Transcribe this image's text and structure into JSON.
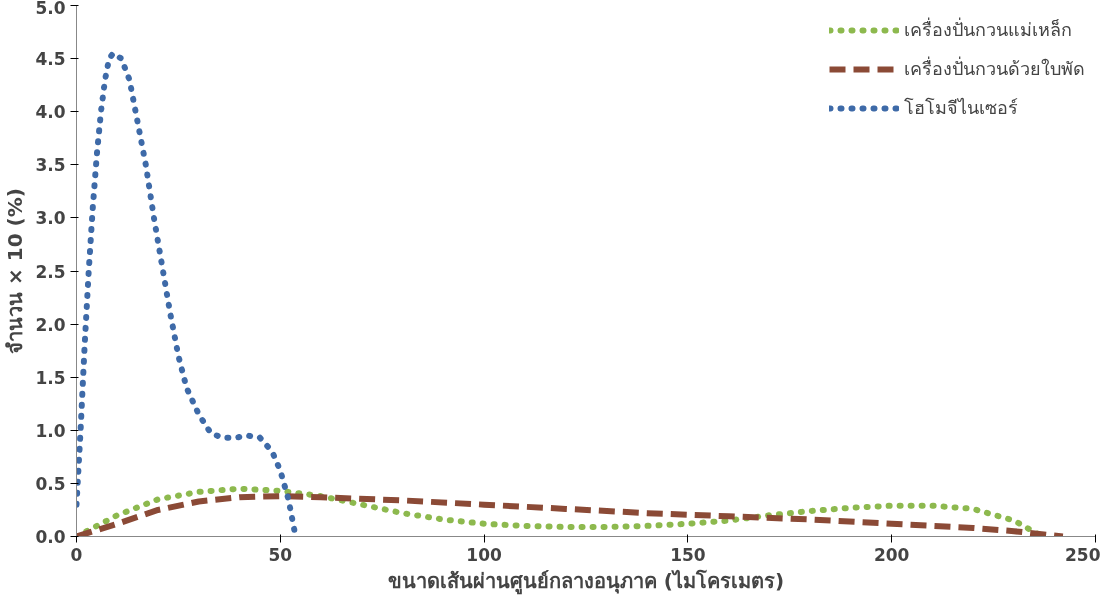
{
  "chart_data": {
    "type": "line",
    "xlabel": "ขนาดเส้นผ่านศูนย์กลางอนุภาค (ไมโครเมตร)",
    "ylabel": "จำนวน × 10 (%)",
    "xlim": [
      0,
      250
    ],
    "xticks": [
      0,
      50,
      100,
      150,
      200,
      250
    ],
    "ylim": [
      0,
      5
    ],
    "yticks": [
      {
        "value": 0,
        "label": "0.0"
      },
      {
        "value": 0.5,
        "label": "0.5"
      },
      {
        "value": 1,
        "label": "1.0"
      },
      {
        "value": 1.5,
        "label": "1.5"
      },
      {
        "value": 2,
        "label": "2.0"
      },
      {
        "value": 2.5,
        "label": "2.5"
      },
      {
        "value": 3,
        "label": "3.0"
      },
      {
        "value": 3.5,
        "label": "3.5"
      },
      {
        "value": 4,
        "label": "4.0"
      },
      {
        "value": 4.5,
        "label": "4.5"
      },
      {
        "value": 5,
        "label": "5.0"
      }
    ],
    "grid": false,
    "legend": "top right",
    "series": [
      {
        "name": "เครื่องปั่นกวนแม่เหล็ก",
        "color": "#8db94e",
        "line_style": "dotted",
        "x": [
          0,
          10,
          20,
          30,
          40,
          50,
          60,
          70,
          80,
          90,
          100,
          110,
          120,
          130,
          140,
          150,
          160,
          170,
          180,
          190,
          200,
          210,
          220,
          230,
          237
        ],
        "values": [
          0,
          0.2,
          0.35,
          0.42,
          0.45,
          0.43,
          0.38,
          0.3,
          0.22,
          0.16,
          0.12,
          0.1,
          0.09,
          0.09,
          0.1,
          0.12,
          0.15,
          0.2,
          0.24,
          0.27,
          0.29,
          0.29,
          0.26,
          0.15,
          0
        ]
      },
      {
        "name": "เครื่องปั่นกวนด้วยใบพัด",
        "color": "#8b4a36",
        "line_style": "dashed",
        "x": [
          0,
          10,
          20,
          30,
          40,
          50,
          60,
          80,
          100,
          120,
          140,
          160,
          180,
          200,
          220,
          230,
          242
        ],
        "values": [
          0,
          0.12,
          0.25,
          0.33,
          0.37,
          0.38,
          0.37,
          0.34,
          0.3,
          0.26,
          0.22,
          0.19,
          0.16,
          0.12,
          0.08,
          0.05,
          0
        ]
      },
      {
        "name": "โฮโมจีไนเซอร์",
        "color": "#3e6aa8",
        "line_style": "dotted",
        "x": [
          0,
          1,
          2,
          3,
          4,
          5,
          6,
          7,
          8,
          9,
          11,
          13,
          15,
          17,
          19,
          21,
          23,
          25,
          27,
          30,
          33,
          36,
          39,
          42,
          45,
          48,
          50,
          52,
          53.5
        ],
        "values": [
          0.3,
          1.0,
          1.8,
          2.5,
          3.1,
          3.6,
          4.0,
          4.3,
          4.5,
          4.55,
          4.5,
          4.3,
          3.9,
          3.5,
          3.0,
          2.55,
          2.1,
          1.7,
          1.4,
          1.15,
          0.97,
          0.93,
          0.93,
          0.95,
          0.93,
          0.8,
          0.62,
          0.35,
          0.05
        ]
      }
    ]
  }
}
